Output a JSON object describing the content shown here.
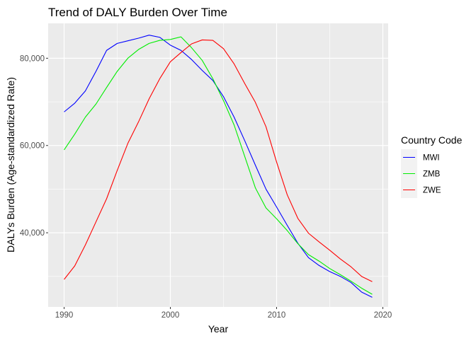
{
  "chart_data": {
    "type": "line",
    "title": "Trend of DALY Burden Over Time",
    "xlabel": "Year",
    "ylabel": "DALYs Burden (Age-standardized Rate)",
    "xlim": [
      1988.5,
      2020.5
    ],
    "ylim": [
      23000,
      88000
    ],
    "x_ticks": [
      1990,
      2000,
      2010,
      2020
    ],
    "x_tick_labels": [
      "1990",
      "2000",
      "2010",
      "2020"
    ],
    "y_ticks": [
      40000,
      60000,
      80000
    ],
    "y_tick_labels": [
      "40,000",
      "60,000",
      "80,000"
    ],
    "grid": true,
    "legend": {
      "title": "Country Code",
      "position": "right"
    },
    "x": [
      1990,
      1991,
      1992,
      1993,
      1994,
      1995,
      1996,
      1997,
      1998,
      1999,
      2000,
      2001,
      2002,
      2003,
      2004,
      2005,
      2006,
      2007,
      2008,
      2009,
      2010,
      2011,
      2012,
      2013,
      2014,
      2015,
      2016,
      2017,
      2018,
      2019
    ],
    "series": [
      {
        "name": "MWI",
        "color": "#0000FF",
        "values": [
          67700,
          69700,
          72500,
          77000,
          81800,
          83400,
          84000,
          84600,
          85300,
          84800,
          83000,
          81800,
          79700,
          77200,
          74900,
          71200,
          66500,
          61100,
          55500,
          50000,
          45900,
          41700,
          37600,
          34300,
          32500,
          31100,
          30000,
          28600,
          26400,
          25200
        ]
      },
      {
        "name": "ZMB",
        "color": "#00EE00",
        "values": [
          59000,
          62600,
          66500,
          69500,
          73300,
          77000,
          80000,
          82000,
          83400,
          84100,
          84300,
          84900,
          82400,
          79500,
          75300,
          70300,
          64700,
          57500,
          50300,
          45700,
          43200,
          40500,
          37500,
          35000,
          33500,
          31800,
          30400,
          28900,
          27300,
          25900
        ]
      },
      {
        "name": "ZWE",
        "color": "#FF0000",
        "values": [
          29300,
          32400,
          37200,
          42500,
          47800,
          54300,
          60500,
          65400,
          70700,
          75300,
          79200,
          81300,
          83300,
          84200,
          84100,
          82200,
          78700,
          74200,
          69900,
          64300,
          56200,
          48700,
          43300,
          39900,
          37900,
          36000,
          34000,
          32200,
          30000,
          28800
        ]
      }
    ]
  }
}
